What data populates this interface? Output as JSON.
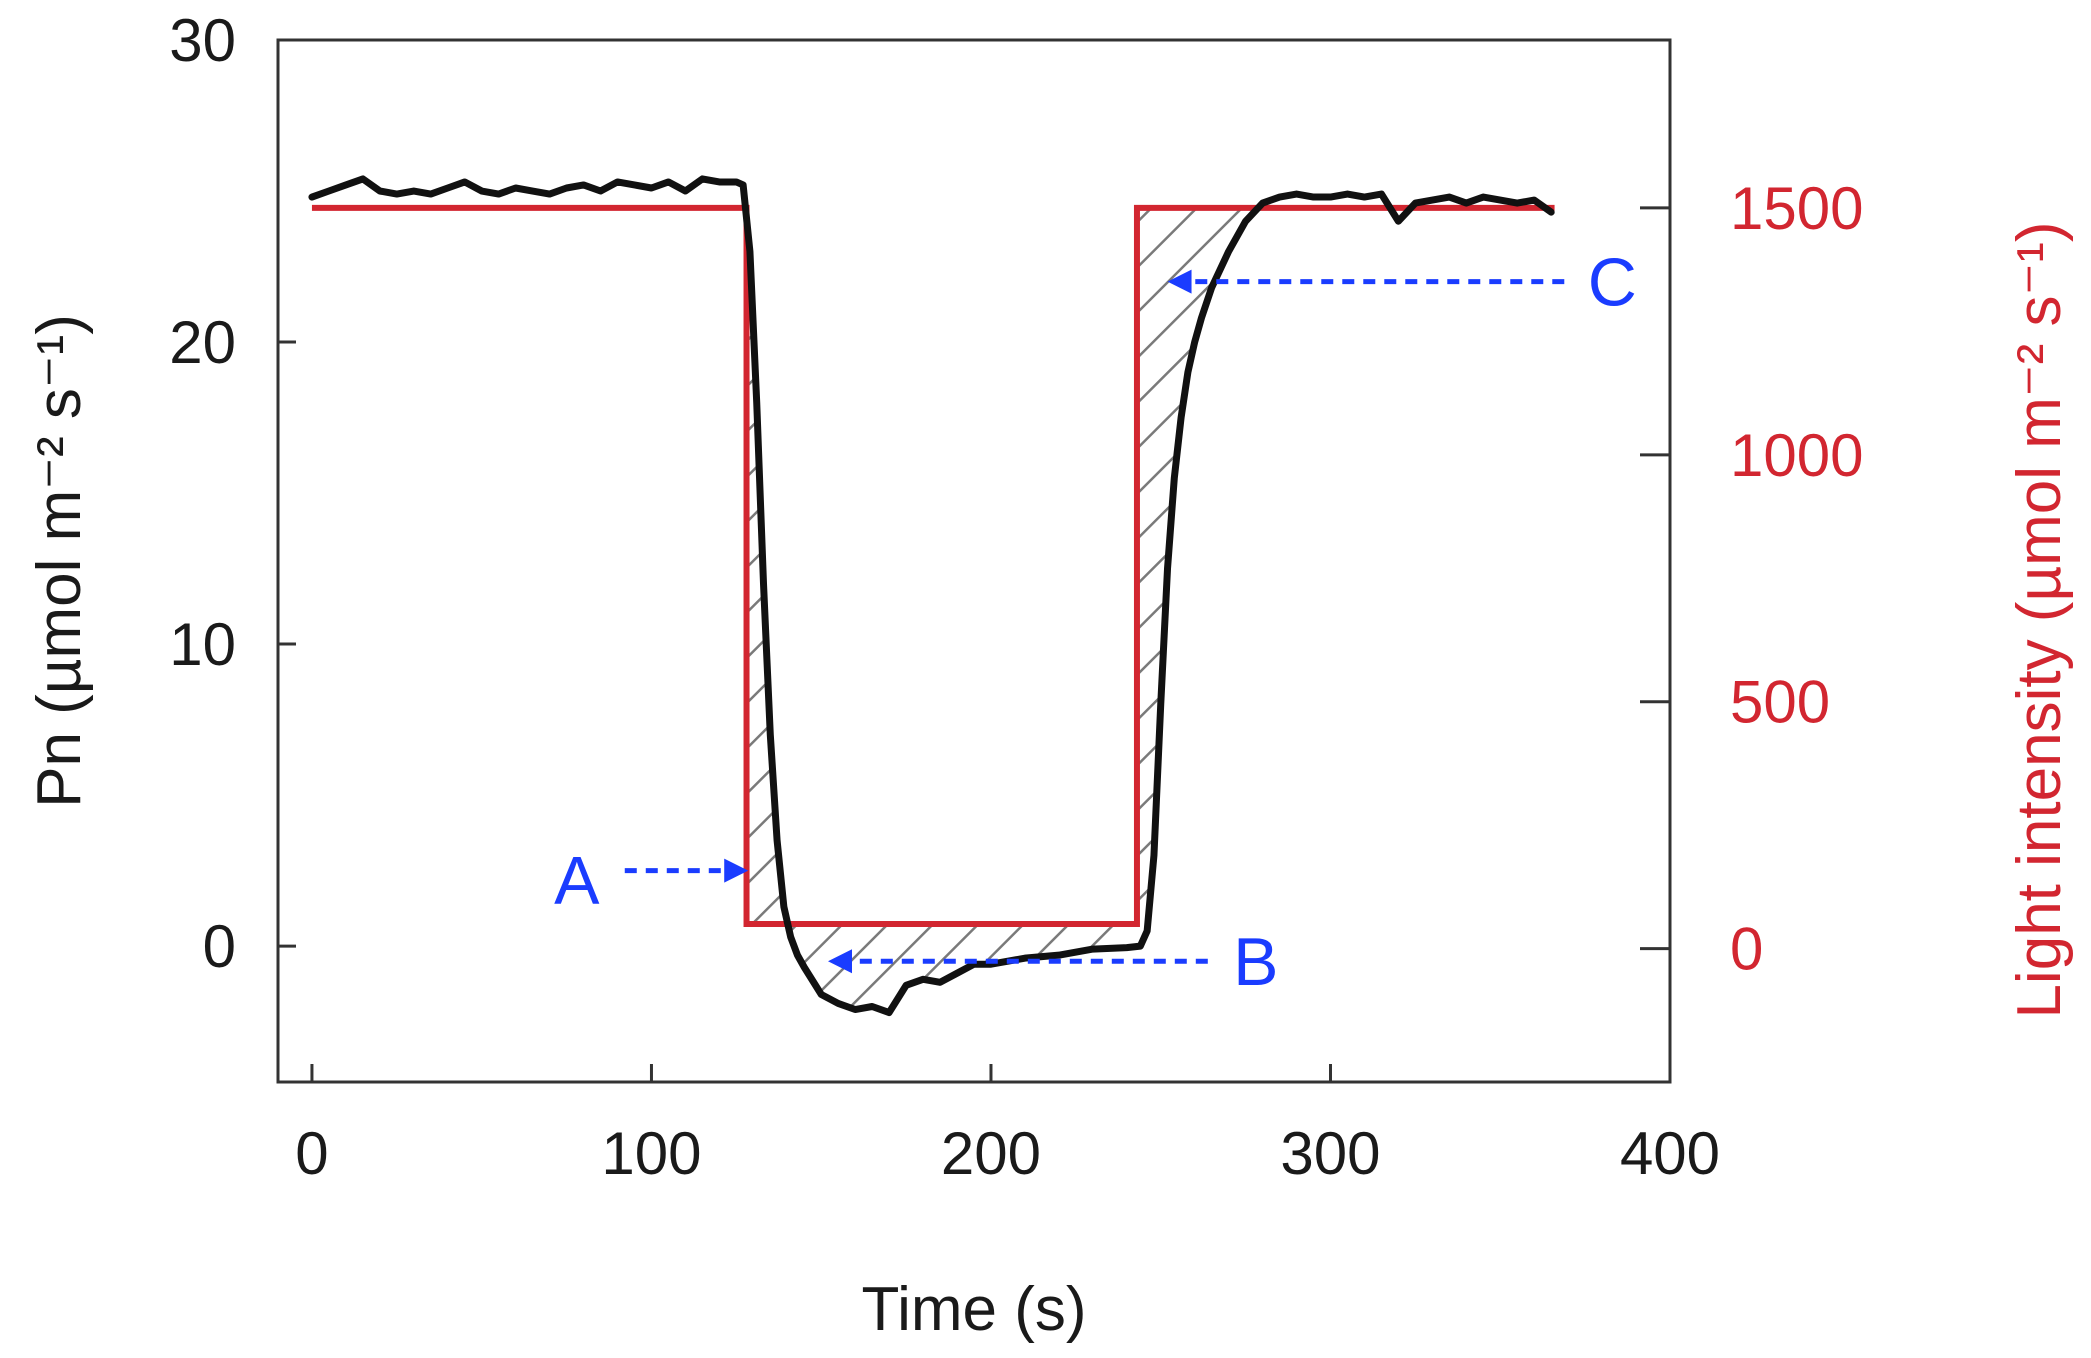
{
  "chart_data": {
    "type": "line",
    "title": "",
    "xlabel": "Time (s)",
    "ylabel": "Pn (µmol m⁻² s⁻¹)",
    "ylabel_right": "Light intensity (µmol m⁻² s⁻¹)",
    "xlim": [
      -10,
      400
    ],
    "ylim": [
      -4.5,
      30
    ],
    "ylim_right": [
      -270,
      1840
    ],
    "xticks": [
      0,
      100,
      200,
      300,
      400
    ],
    "xtick_labels": [
      "0",
      "100",
      "200",
      "300",
      "400"
    ],
    "yticks": [
      0,
      10,
      20,
      30
    ],
    "ytick_labels": [
      "0",
      "10",
      "20",
      "30"
    ],
    "yticks_right": [
      0,
      500,
      1000,
      1500
    ],
    "ytick_right_labels": [
      "0",
      "500",
      "1000",
      "1500"
    ],
    "grid": false,
    "colors": {
      "pn": "#111111",
      "light": "#d22630",
      "annotation": "#1a3cff",
      "hatch": "#7a7a7a",
      "right_axis": "#d22630"
    },
    "series": [
      {
        "name": "Pn",
        "axis": "left",
        "x": [
          0,
          5,
          10,
          15,
          20,
          25,
          30,
          35,
          40,
          45,
          50,
          55,
          60,
          65,
          70,
          75,
          80,
          85,
          90,
          95,
          100,
          105,
          110,
          115,
          120,
          125,
          127,
          129,
          131,
          133,
          135,
          137,
          139,
          141,
          143,
          145,
          150,
          155,
          160,
          165,
          170,
          175,
          180,
          185,
          190,
          195,
          200,
          210,
          220,
          230,
          240,
          244,
          246,
          248,
          250,
          252,
          254,
          256,
          258,
          260,
          262,
          265,
          270,
          275,
          280,
          285,
          290,
          295,
          300,
          305,
          310,
          315,
          320,
          325,
          330,
          335,
          340,
          345,
          350,
          355,
          360,
          365
        ],
        "values": [
          24.8,
          25.0,
          25.2,
          25.4,
          25.0,
          24.9,
          25.0,
          24.9,
          25.1,
          25.3,
          25.0,
          24.9,
          25.1,
          25.0,
          24.9,
          25.1,
          25.2,
          25.0,
          25.3,
          25.2,
          25.1,
          25.3,
          25.0,
          25.4,
          25.3,
          25.3,
          25.2,
          23.0,
          18.0,
          12.0,
          7.0,
          3.5,
          1.3,
          0.3,
          -0.3,
          -0.7,
          -1.6,
          -1.9,
          -2.1,
          -2.0,
          -2.2,
          -1.3,
          -1.1,
          -1.2,
          -0.9,
          -0.6,
          -0.6,
          -0.4,
          -0.3,
          -0.1,
          -0.05,
          0.0,
          0.5,
          3.0,
          8.0,
          12.5,
          15.5,
          17.5,
          19.0,
          20.0,
          20.8,
          21.8,
          23.0,
          24.0,
          24.6,
          24.8,
          24.9,
          24.8,
          24.8,
          24.9,
          24.8,
          24.9,
          24.0,
          24.6,
          24.7,
          24.8,
          24.6,
          24.8,
          24.7,
          24.6,
          24.7,
          24.3
        ]
      },
      {
        "name": "Light intensity",
        "axis": "right",
        "x": [
          0,
          128,
          128,
          243,
          243,
          366
        ],
        "values": [
          1500,
          1500,
          50,
          50,
          1500,
          1500
        ]
      }
    ],
    "annotations": [
      {
        "label": "A",
        "text_x": 78,
        "text_y": 2.2,
        "arrow_to_x": 128.5,
        "arrow_to_y": 2.5
      },
      {
        "label": "B",
        "text_x": 278,
        "text_y": -0.5,
        "arrow_to_x": 152,
        "arrow_to_y": -0.5
      },
      {
        "label": "C",
        "text_x": 383,
        "text_y": 22.0,
        "arrow_to_x": 252,
        "arrow_to_y": 22.0
      }
    ]
  }
}
